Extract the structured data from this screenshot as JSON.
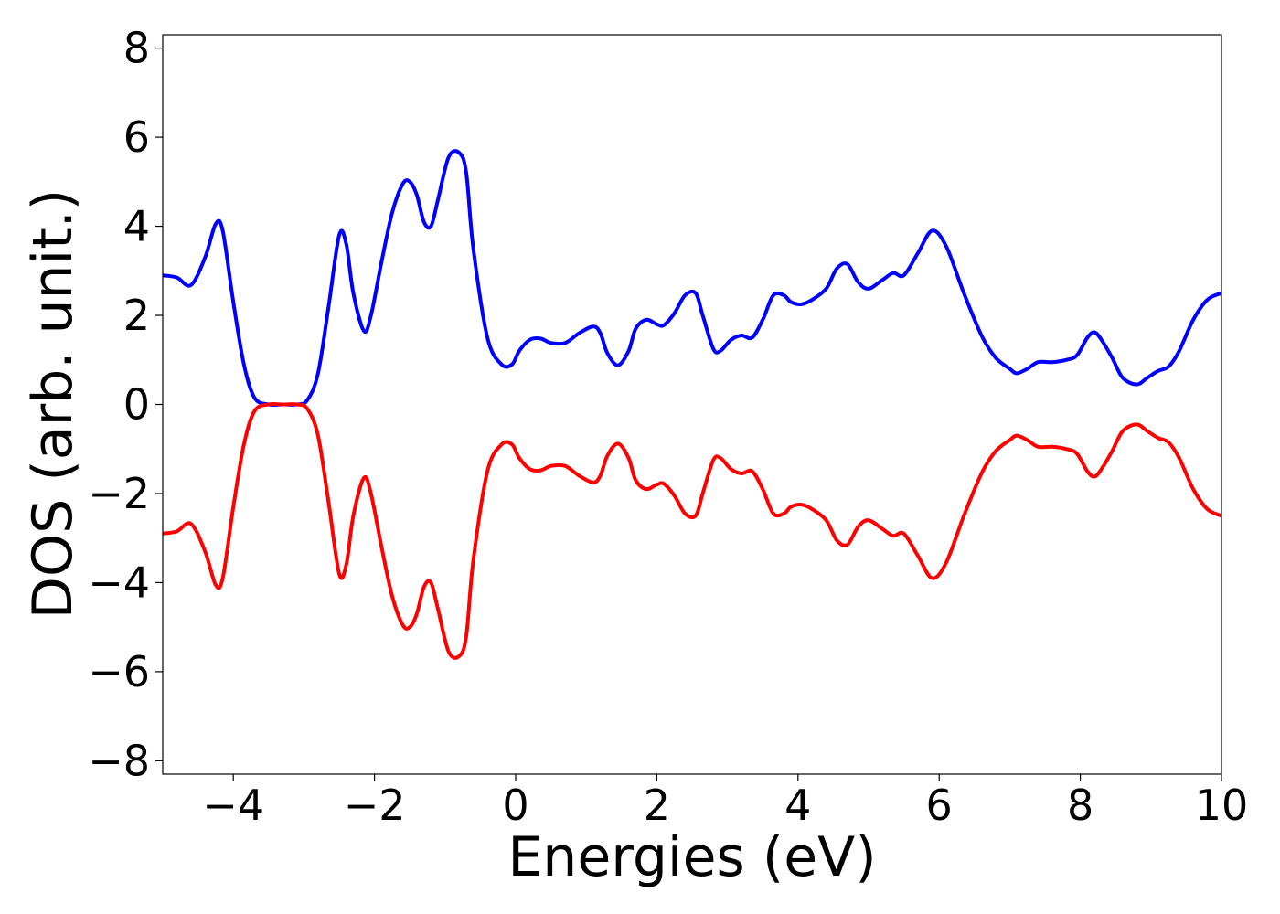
{
  "chart_data": {
    "type": "line",
    "title": "",
    "xlabel": "Energies (eV)",
    "ylabel": "DOS (arb. unit.)",
    "xlim": [
      -5,
      10
    ],
    "ylim": [
      -8.3,
      8.3
    ],
    "x_ticks": [
      -4,
      -2,
      0,
      2,
      4,
      6,
      8,
      10
    ],
    "x_tick_labels": [
      "−4",
      "−2",
      "0",
      "2",
      "4",
      "6",
      "8",
      "10"
    ],
    "y_ticks": [
      -8,
      -6,
      -4,
      -2,
      0,
      2,
      4,
      6,
      8
    ],
    "y_tick_labels": [
      "−8",
      "−6",
      "−4",
      "−2",
      "0",
      "2",
      "4",
      "6",
      "8"
    ],
    "grid": false,
    "legend": "none",
    "series": [
      {
        "color": "#0000ff",
        "x": [
          -5.0,
          -4.8,
          -4.6,
          -4.4,
          -4.25,
          -4.15,
          -4.0,
          -3.85,
          -3.7,
          -3.5,
          -3.3,
          -3.1,
          -2.95,
          -2.8,
          -2.65,
          -2.5,
          -2.4,
          -2.3,
          -2.15,
          -2.05,
          -1.9,
          -1.75,
          -1.6,
          -1.5,
          -1.4,
          -1.3,
          -1.2,
          -1.1,
          -0.95,
          -0.8,
          -0.7,
          -0.6,
          -0.4,
          -0.2,
          -0.05,
          0.05,
          0.2,
          0.35,
          0.5,
          0.7,
          0.9,
          1.1,
          1.2,
          1.3,
          1.45,
          1.6,
          1.7,
          1.85,
          2.0,
          2.1,
          2.25,
          2.4,
          2.55,
          2.65,
          2.8,
          2.9,
          3.05,
          3.2,
          3.35,
          3.5,
          3.65,
          3.8,
          3.9,
          4.05,
          4.2,
          4.4,
          4.55,
          4.7,
          4.85,
          5.0,
          5.2,
          5.35,
          5.5,
          5.7,
          5.9,
          6.1,
          6.35,
          6.6,
          6.8,
          7.0,
          7.1,
          7.25,
          7.4,
          7.6,
          7.8,
          7.95,
          8.1,
          8.2,
          8.3,
          8.45,
          8.6,
          8.8,
          8.95,
          9.1,
          9.25,
          9.4,
          9.6,
          9.8,
          10.0
        ],
        "values": [
          2.9,
          2.85,
          2.68,
          3.3,
          4.05,
          3.9,
          2.3,
          0.9,
          0.15,
          0.0,
          0.0,
          0.0,
          0.1,
          0.7,
          2.2,
          3.8,
          3.6,
          2.5,
          1.65,
          2.0,
          3.2,
          4.3,
          4.95,
          5.0,
          4.7,
          4.1,
          4.0,
          4.6,
          5.55,
          5.65,
          5.2,
          3.5,
          1.5,
          0.9,
          0.9,
          1.2,
          1.45,
          1.48,
          1.38,
          1.38,
          1.6,
          1.75,
          1.6,
          1.15,
          0.88,
          1.2,
          1.7,
          1.9,
          1.8,
          1.78,
          2.05,
          2.45,
          2.5,
          2.0,
          1.25,
          1.2,
          1.45,
          1.55,
          1.5,
          1.9,
          2.45,
          2.45,
          2.3,
          2.25,
          2.35,
          2.6,
          3.05,
          3.15,
          2.75,
          2.6,
          2.8,
          2.95,
          2.9,
          3.4,
          3.9,
          3.55,
          2.5,
          1.55,
          1.05,
          0.8,
          0.7,
          0.8,
          0.95,
          0.95,
          1.0,
          1.1,
          1.5,
          1.62,
          1.45,
          1.05,
          0.6,
          0.45,
          0.6,
          0.75,
          0.85,
          1.2,
          1.9,
          2.35,
          2.5
        ]
      },
      {
        "color": "#ff0000",
        "x": [
          -5.0,
          -4.8,
          -4.6,
          -4.4,
          -4.25,
          -4.15,
          -4.0,
          -3.85,
          -3.7,
          -3.5,
          -3.3,
          -3.1,
          -2.95,
          -2.8,
          -2.65,
          -2.5,
          -2.4,
          -2.3,
          -2.15,
          -2.05,
          -1.9,
          -1.75,
          -1.6,
          -1.5,
          -1.4,
          -1.3,
          -1.2,
          -1.1,
          -0.95,
          -0.8,
          -0.7,
          -0.6,
          -0.4,
          -0.2,
          -0.05,
          0.05,
          0.2,
          0.35,
          0.5,
          0.7,
          0.9,
          1.1,
          1.2,
          1.3,
          1.45,
          1.6,
          1.7,
          1.85,
          2.0,
          2.1,
          2.25,
          2.4,
          2.55,
          2.65,
          2.8,
          2.9,
          3.05,
          3.2,
          3.35,
          3.5,
          3.65,
          3.8,
          3.9,
          4.05,
          4.2,
          4.4,
          4.55,
          4.7,
          4.85,
          5.0,
          5.2,
          5.35,
          5.5,
          5.7,
          5.9,
          6.1,
          6.35,
          6.6,
          6.8,
          7.0,
          7.1,
          7.25,
          7.4,
          7.6,
          7.8,
          7.95,
          8.1,
          8.2,
          8.3,
          8.45,
          8.6,
          8.8,
          8.95,
          9.1,
          9.25,
          9.4,
          9.6,
          9.8,
          10.0
        ],
        "values": [
          -2.9,
          -2.85,
          -2.68,
          -3.3,
          -4.05,
          -3.9,
          -2.3,
          -0.9,
          -0.15,
          0.0,
          0.0,
          0.0,
          -0.1,
          -0.7,
          -2.2,
          -3.8,
          -3.6,
          -2.5,
          -1.65,
          -2.0,
          -3.2,
          -4.3,
          -4.95,
          -5.0,
          -4.7,
          -4.1,
          -4.0,
          -4.6,
          -5.55,
          -5.65,
          -5.2,
          -3.5,
          -1.5,
          -0.9,
          -0.9,
          -1.2,
          -1.45,
          -1.48,
          -1.38,
          -1.38,
          -1.6,
          -1.75,
          -1.6,
          -1.15,
          -0.88,
          -1.2,
          -1.7,
          -1.9,
          -1.8,
          -1.78,
          -2.05,
          -2.45,
          -2.5,
          -2.0,
          -1.25,
          -1.2,
          -1.45,
          -1.55,
          -1.5,
          -1.9,
          -2.45,
          -2.45,
          -2.3,
          -2.25,
          -2.35,
          -2.6,
          -3.05,
          -3.15,
          -2.75,
          -2.6,
          -2.8,
          -2.95,
          -2.9,
          -3.4,
          -3.9,
          -3.55,
          -2.5,
          -1.55,
          -1.05,
          -0.8,
          -0.7,
          -0.8,
          -0.95,
          -0.95,
          -1.0,
          -1.1,
          -1.5,
          -1.62,
          -1.45,
          -1.05,
          -0.6,
          -0.45,
          -0.6,
          -0.75,
          -0.85,
          -1.2,
          -1.9,
          -2.35,
          -2.5
        ]
      }
    ]
  }
}
